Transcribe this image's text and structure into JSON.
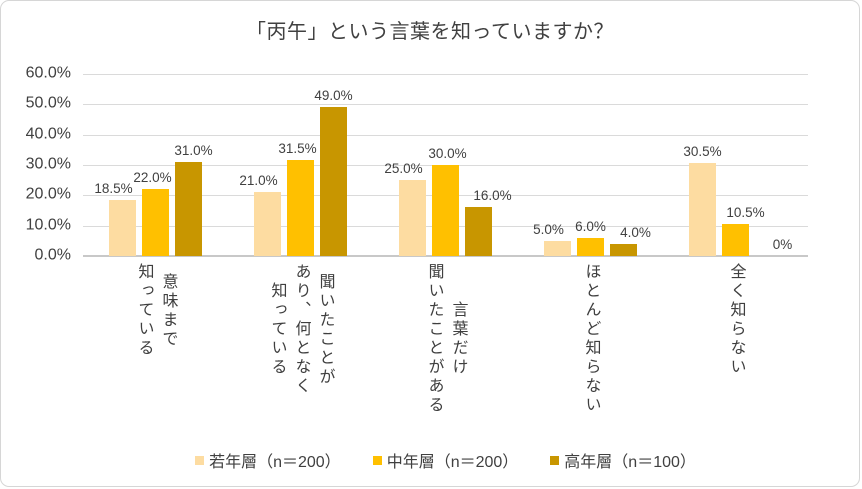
{
  "chart_data": {
    "type": "bar",
    "title": "「丙午」という言葉を知っていますか？",
    "categories": [
      "意味まで知っている",
      "聞いたことがあり、何となく知っている",
      "言葉だけ聞いたことがある",
      "ほとんど知らない",
      "全く知らない"
    ],
    "category_lines": [
      [
        "意味まで",
        "知っている"
      ],
      [
        "聞いたことが",
        "あり、何となく",
        "知っている"
      ],
      [
        "言葉だけ",
        "聞いたことがある"
      ],
      [
        "ほとんど知らない"
      ],
      [
        "全く知らない"
      ]
    ],
    "series": [
      {
        "name": "若年層（n＝200）",
        "color": "#FDDCA1",
        "values": [
          18.5,
          21.0,
          25.0,
          5.0,
          30.5
        ],
        "labels": [
          "18.5%",
          "21.0%",
          "25.0%",
          "5.0%",
          "30.5%"
        ]
      },
      {
        "name": "中年層（n＝200）",
        "color": "#FFC000",
        "values": [
          22.0,
          31.5,
          30.0,
          6.0,
          10.5
        ],
        "labels": [
          "22.0%",
          "31.5%",
          "30.0%",
          "6.0%",
          "10.5%"
        ]
      },
      {
        "name": "高年層（n＝100）",
        "color": "#C89600",
        "values": [
          31.0,
          49.0,
          16.0,
          4.0,
          0
        ],
        "labels": [
          "31.0%",
          "49.0%",
          "16.0%",
          "4.0%",
          "0%"
        ]
      }
    ],
    "ylabel": "",
    "xlabel": "",
    "ylim": [
      0,
      60
    ],
    "y_tick_step": 10,
    "y_tick_labels": [
      "0.0%",
      "10.0%",
      "20.0%",
      "30.0%",
      "40.0%",
      "50.0%",
      "60.0%"
    ],
    "grid": true,
    "legend_position": "bottom",
    "label_dx": [
      [
        -9,
        -9,
        -9,
        -9,
        0
      ],
      [
        -3,
        -3,
        2,
        0,
        10
      ],
      [
        5,
        0,
        14,
        12,
        14
      ]
    ],
    "text_color": "#404040",
    "gridline_color": "#DADADA"
  }
}
